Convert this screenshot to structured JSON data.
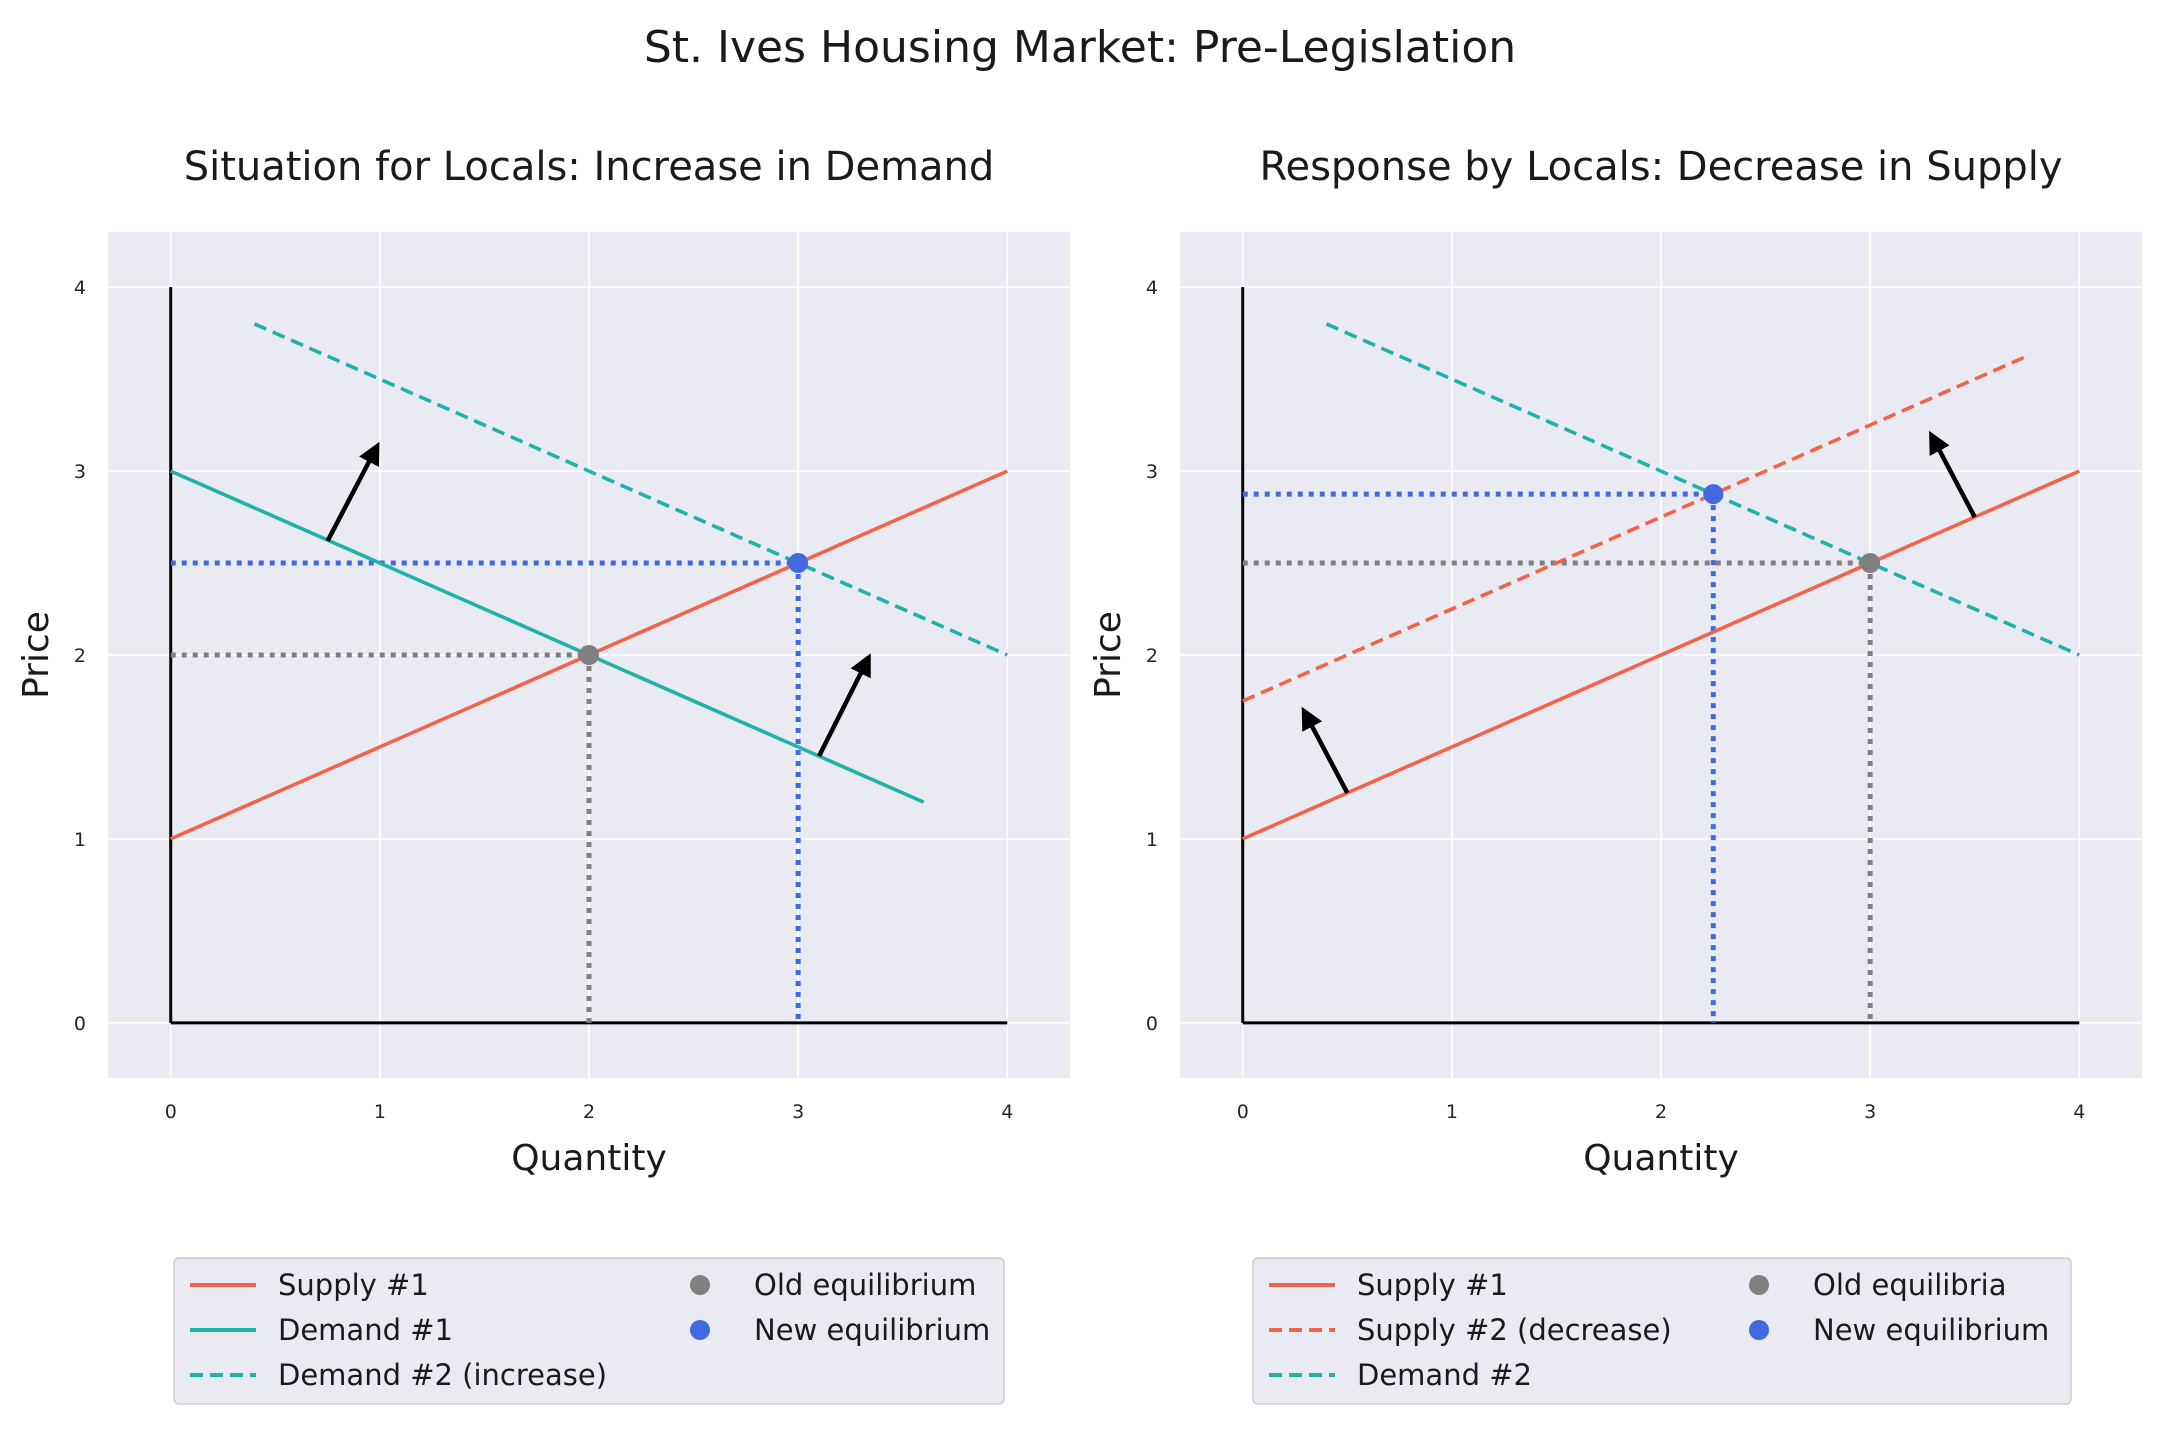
{
  "figure": {
    "suptitle": "St. Ives Housing Market: Pre-Legislation",
    "colors": {
      "background": "#eaeaf2",
      "grid": "#ffffff",
      "supply": "#f26449",
      "demand": "#20b2aa",
      "old_equilibrium": "#808080",
      "new_equilibrium": "#4169e1",
      "arrow": "#000000"
    }
  },
  "chart_data": [
    {
      "type": "line",
      "title": "Situation for Locals: Increase in Demand",
      "xlabel": "Quantity",
      "ylabel": "Price",
      "xlim": [
        -0.3,
        4.3
      ],
      "ylim": [
        -0.3,
        4.3
      ],
      "xticks": [
        "0",
        "1",
        "2",
        "3",
        "4"
      ],
      "yticks": [
        "0",
        "1",
        "2",
        "3",
        "4"
      ],
      "grid": true,
      "legend_position": "below",
      "series": [
        {
          "name": "Supply #1",
          "kind": "supply",
          "style": "solid",
          "x": [
            0,
            4
          ],
          "y": [
            1,
            3
          ]
        },
        {
          "name": "Demand #1",
          "kind": "demand",
          "style": "solid",
          "x": [
            0,
            3.6
          ],
          "y": [
            3,
            1.2
          ]
        },
        {
          "name": "Demand #2 (increase)",
          "kind": "demand",
          "style": "dashed",
          "x": [
            0.4,
            4
          ],
          "y": [
            3.8,
            2
          ]
        }
      ],
      "points": [
        {
          "name": "Old equilibrium",
          "kind": "old",
          "x": 2,
          "y": 2
        },
        {
          "name": "New equilibrium",
          "kind": "new",
          "x": 3,
          "y": 2.5
        }
      ],
      "arrows": [
        {
          "from": [
            0.75,
            2.62
          ],
          "to": [
            0.98,
            3.12
          ]
        },
        {
          "from": [
            3.1,
            1.45
          ],
          "to": [
            3.33,
            1.97
          ]
        }
      ],
      "legend": {
        "lines": [
          {
            "label": "Supply #1",
            "kind": "supply",
            "style": "solid"
          },
          {
            "label": "Demand #1",
            "kind": "demand",
            "style": "solid"
          },
          {
            "label": "Demand #2 (increase)",
            "kind": "demand",
            "style": "dashed"
          }
        ],
        "markers": [
          {
            "label": "Old equilibrium",
            "kind": "old"
          },
          {
            "label": "New equilibrium",
            "kind": "new"
          }
        ]
      }
    },
    {
      "type": "line",
      "title": "Response by Locals: Decrease in Supply",
      "xlabel": "Quantity",
      "ylabel": "Price",
      "xlim": [
        -0.3,
        4.3
      ],
      "ylim": [
        -0.3,
        4.3
      ],
      "xticks": [
        "0",
        "1",
        "2",
        "3",
        "4"
      ],
      "yticks": [
        "0",
        "1",
        "2",
        "3",
        "4"
      ],
      "grid": true,
      "legend_position": "below",
      "series": [
        {
          "name": "Supply #1",
          "kind": "supply",
          "style": "solid",
          "x": [
            0,
            4
          ],
          "y": [
            1,
            3
          ]
        },
        {
          "name": "Supply #2 (decrease)",
          "kind": "supply",
          "style": "dashed",
          "x": [
            0,
            3.75
          ],
          "y": [
            1.75,
            3.625
          ]
        },
        {
          "name": "Demand #2",
          "kind": "demand",
          "style": "dashed",
          "x": [
            0.4,
            4
          ],
          "y": [
            3.8,
            2
          ]
        }
      ],
      "points": [
        {
          "name": "Old equilibria",
          "kind": "old",
          "x": 3,
          "y": 2.5
        },
        {
          "name": "New equilibrium",
          "kind": "new",
          "x": 2.25,
          "y": 2.875
        }
      ],
      "arrows": [
        {
          "from": [
            0.5,
            1.25
          ],
          "to": [
            0.3,
            1.68
          ]
        },
        {
          "from": [
            3.5,
            2.75
          ],
          "to": [
            3.3,
            3.18
          ]
        }
      ],
      "legend": {
        "lines": [
          {
            "label": "Supply #1",
            "kind": "supply",
            "style": "solid"
          },
          {
            "label": "Supply #2 (decrease)",
            "kind": "supply",
            "style": "dashed"
          },
          {
            "label": "Demand #2",
            "kind": "demand",
            "style": "dashed"
          }
        ],
        "markers": [
          {
            "label": "Old equilibria",
            "kind": "old"
          },
          {
            "label": "New equilibrium",
            "kind": "new"
          }
        ]
      }
    }
  ]
}
